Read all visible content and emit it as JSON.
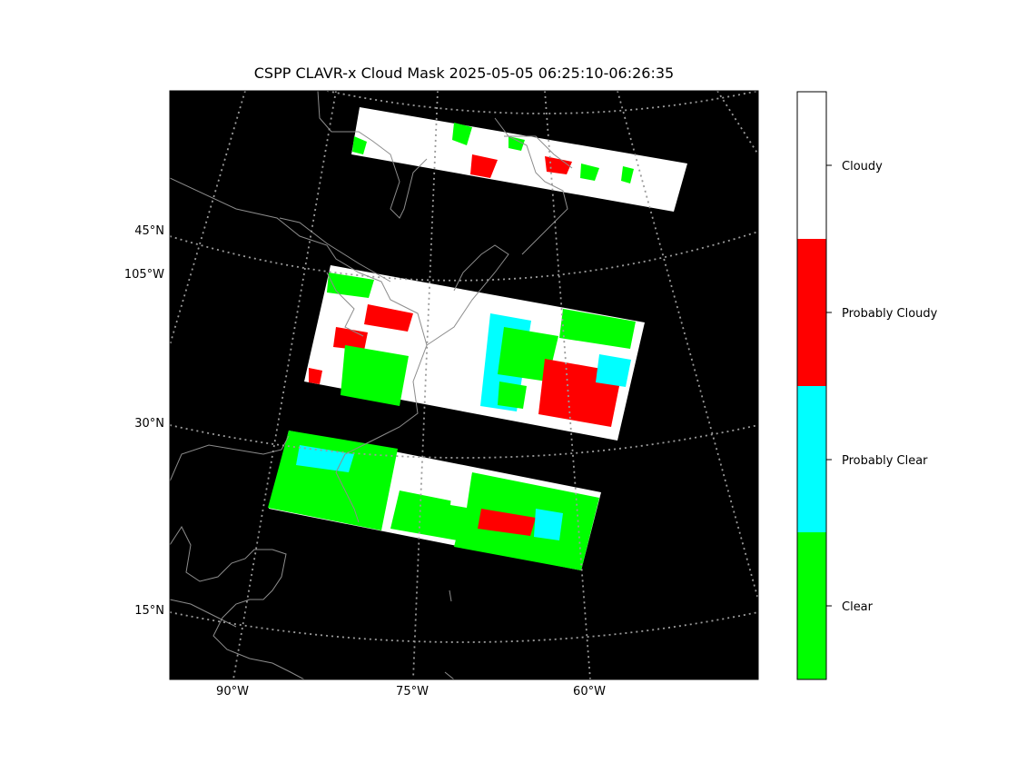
{
  "title": "CSPP CLAVR-x Cloud Mask 2025-05-05 06:25:10-06:26:35",
  "latitude_labels": [
    "45°N",
    "105°W",
    "30°N",
    "15°N"
  ],
  "longitude_labels": [
    "90°W",
    "75°W",
    "60°W"
  ],
  "colorbar": {
    "categories": [
      {
        "label": "Cloudy",
        "color": "#ffffff"
      },
      {
        "label": "Probably Cloudy",
        "color": "#ff0000"
      },
      {
        "label": "Probably Clear",
        "color": "#00ffff"
      },
      {
        "label": "Clear",
        "color": "#00ff00"
      }
    ]
  },
  "colors": {
    "background": "#000000",
    "coastline": "#8c8c8c",
    "graticule": "#9a9a9a"
  }
}
